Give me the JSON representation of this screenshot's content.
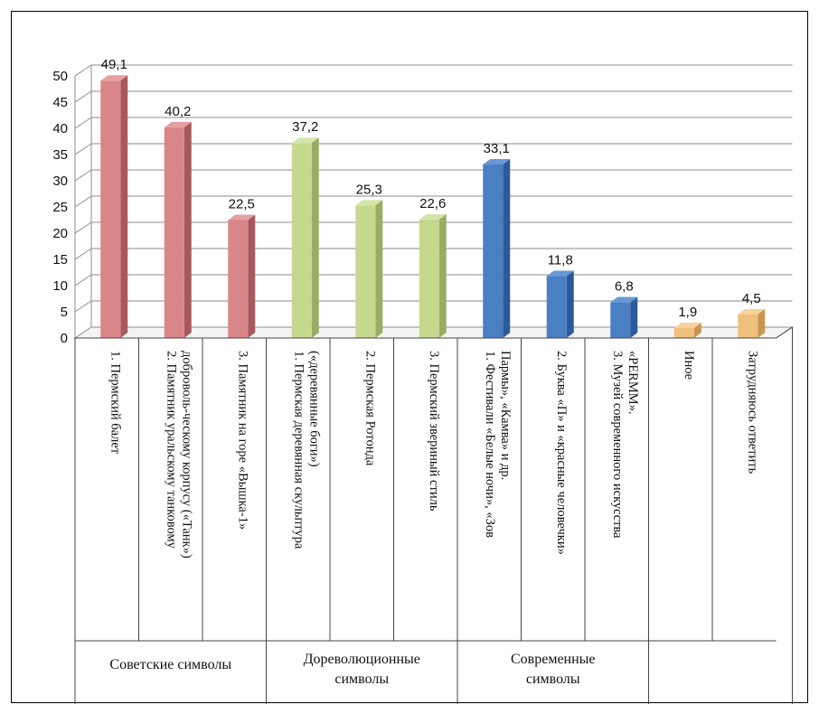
{
  "chart_data": {
    "type": "bar",
    "title": "",
    "xlabel": "",
    "ylabel": "",
    "ylim": [
      0,
      50
    ],
    "yticks": [
      "0",
      "5",
      "10",
      "15",
      "20",
      "25",
      "30",
      "35",
      "40",
      "45",
      "50"
    ],
    "grid": true,
    "legend": "none",
    "bars": [
      {
        "label_lines": [
          "1. Пермский балет"
        ],
        "value": 49.1,
        "value_label": "49,1",
        "group": "soviet"
      },
      {
        "label_lines": [
          "2. Памятник уральскому танковому",
          "доброволь-ческому корпусу («Танк»)"
        ],
        "value": 40.2,
        "value_label": "40,2",
        "group": "soviet"
      },
      {
        "label_lines": [
          "3. Памятник на горе «Вышка-1»"
        ],
        "value": 22.5,
        "value_label": "22,5",
        "group": "soviet"
      },
      {
        "label_lines": [
          "1. Пермская деревянная скульптура",
          "(«деревянные боги»)"
        ],
        "value": 37.2,
        "value_label": "37,2",
        "group": "prerev"
      },
      {
        "label_lines": [
          "2. Пермская Ротонда"
        ],
        "value": 25.3,
        "value_label": "25,3",
        "group": "prerev"
      },
      {
        "label_lines": [
          "3. Пермский звериный стиль"
        ],
        "value": 22.6,
        "value_label": "22,6",
        "group": "prerev"
      },
      {
        "label_lines": [
          "1. Фестивали «Белые ночи», «Зов",
          "Пармы», «Камва» и др."
        ],
        "value": 33.1,
        "value_label": "33,1",
        "group": "modern"
      },
      {
        "label_lines": [
          "2. Буква «П» и «красные человечки»"
        ],
        "value": 11.8,
        "value_label": "11,8",
        "group": "modern"
      },
      {
        "label_lines": [
          "3. Музей современного искусства",
          "«PERMM»."
        ],
        "value": 6.8,
        "value_label": "6,8",
        "group": "modern"
      },
      {
        "label_lines": [
          "Иное"
        ],
        "value": 1.9,
        "value_label": "1,9",
        "group": "other"
      },
      {
        "label_lines": [
          "Затрудняюсь ответить"
        ],
        "value": 4.5,
        "value_label": "4,5",
        "group": "other"
      }
    ],
    "groups": [
      {
        "key": "soviet",
        "label_lines": [
          "Советские символы"
        ],
        "span": [
          0,
          2
        ],
        "color": "#d9868a",
        "side": "#a8585c",
        "top": "#e6a0a3"
      },
      {
        "key": "prerev",
        "label_lines": [
          "Дореволюционные",
          "символы"
        ],
        "span": [
          3,
          5
        ],
        "color": "#c4d98e",
        "side": "#97ad62",
        "top": "#d4e5aa"
      },
      {
        "key": "modern",
        "label_lines": [
          "Современные",
          "символы"
        ],
        "span": [
          6,
          8
        ],
        "color": "#4a7fc4",
        "side": "#2c5a98",
        "top": "#6b98d4"
      },
      {
        "key": "other",
        "label_lines": [
          ""
        ],
        "span": [
          9,
          10
        ],
        "color": "#f0bf7c",
        "side": "#c9964f",
        "top": "#f6d29c"
      }
    ]
  }
}
